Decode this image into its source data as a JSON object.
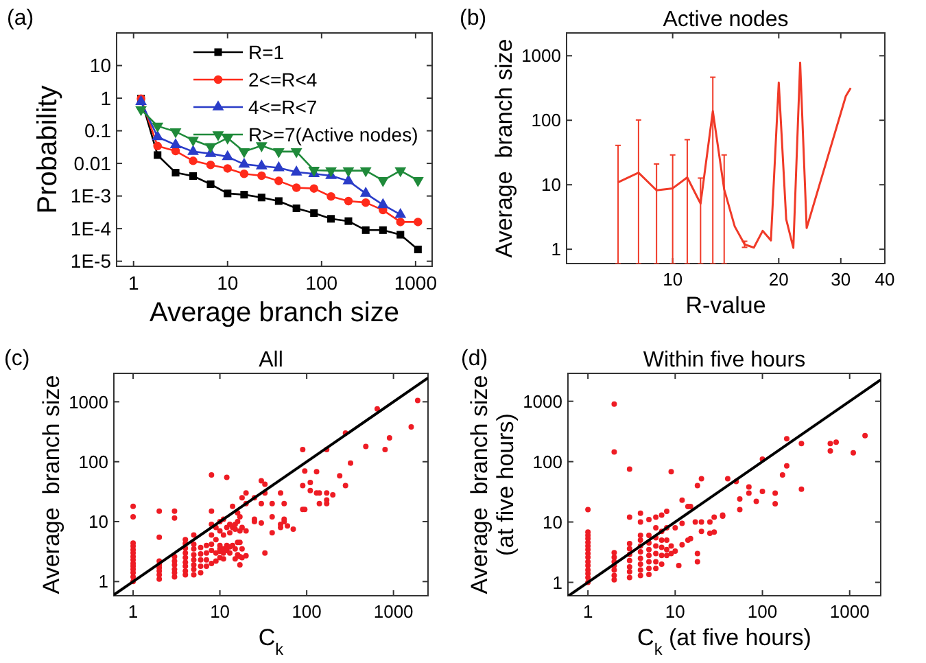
{
  "chart_data": [
    {
      "type": "line",
      "log": "xy",
      "xlabel": "Average branch size",
      "ylabel": "Probability",
      "annotations": [
        "(a)"
      ],
      "legend": "top right",
      "xlim": [
        0.66,
        1500
      ],
      "ylim": [
        7e-06,
        100
      ],
      "xticks": [
        1,
        10,
        100,
        1000
      ],
      "yticks": [
        {
          "value": 1e-05,
          "label": "1E-5"
        },
        {
          "value": 0.0001,
          "label": "1E-4"
        },
        {
          "value": 0.001,
          "label": "1E-3"
        },
        0.01,
        0.1,
        1,
        10
      ],
      "x": [
        1.2,
        1.8,
        2.8,
        4.3,
        6.6,
        10,
        15,
        23,
        35,
        54,
        83,
        126,
        193,
        295,
        450,
        690,
        1060
      ],
      "series": [
        {
          "name": "R=1",
          "color": "#000000",
          "marker": "square",
          "values": [
            0.97,
            0.018,
            0.0052,
            0.0041,
            0.0023,
            0.0012,
            0.0011,
            0.0009,
            0.0007,
            0.00042,
            0.0003,
            0.0002,
            0.00017,
            9e-05,
            9e-05,
            6.5e-05,
            2.3e-05
          ]
        },
        {
          "name": "2<=R<4",
          "color": "#ff2a1a",
          "marker": "circle",
          "values": [
            0.97,
            0.034,
            0.024,
            0.012,
            0.009,
            0.007,
            0.0048,
            0.0042,
            0.0029,
            0.0018,
            0.0017,
            0.00097,
            0.0007,
            0.00063,
            0.00037,
            0.00016,
            0.00016
          ]
        },
        {
          "name": "4<=R<7",
          "color": "#2a3cc8",
          "marker": "triangle",
          "values": [
            0.78,
            0.065,
            0.037,
            0.023,
            0.02,
            0.016,
            0.0094,
            0.0083,
            0.0073,
            0.0054,
            0.0048,
            0.0042,
            0.0029,
            0.0012,
            0.00054,
            0.00027,
            null
          ]
        },
        {
          "name": "R>=7(Active nodes)",
          "color": "#1f8a3a",
          "marker": "triangle-down",
          "values": [
            0.45,
            0.14,
            0.094,
            0.052,
            0.033,
            0.06,
            0.023,
            0.035,
            0.023,
            0.023,
            0.0062,
            0.006,
            0.006,
            0.006,
            0.003,
            0.006,
            0.003
          ]
        }
      ]
    },
    {
      "type": "line",
      "log": "xy",
      "title": "Active nodes",
      "xlabel": "R-value",
      "ylabel": "Average  branch size",
      "annotations": [
        "(b)"
      ],
      "xlim": [
        5,
        40
      ],
      "ylim": [
        0.6,
        2260
      ],
      "xticks": [
        10,
        20,
        30,
        40
      ],
      "yticks": [
        1,
        10,
        100,
        1000
      ],
      "x": [
        7,
        8,
        9,
        10,
        11,
        12,
        13,
        14,
        15,
        16,
        17,
        18,
        19,
        20,
        21,
        22,
        23,
        24,
        31,
        32
      ],
      "series": [
        {
          "color": "#f03a28",
          "values": [
            10.9,
            15.4,
            8.2,
            8.8,
            13,
            5.1,
            139,
            8.5,
            2.26,
            1.19,
            1.06,
            1.93,
            1.37,
            385,
            2.9,
            1.05,
            785,
            2.13,
            237,
            316
          ],
          "errors": [
            [
              0.6,
              40.8
            ],
            [
              0.6,
              101
            ],
            [
              0.6,
              21
            ],
            [
              0.6,
              29
            ],
            [
              0.6,
              50
            ],
            [
              0.6,
              12.7
            ],
            [
              0.6,
              465
            ],
            [
              0.6,
              29
            ],
            null,
            [
              1.07,
              1.33
            ],
            null,
            null,
            null,
            null,
            null,
            null,
            null,
            null,
            null,
            null
          ]
        }
      ]
    },
    {
      "type": "scatter",
      "log": "xy",
      "title": "All",
      "xlabel": "C$_{k}$",
      "ylabel": "Average  branch size",
      "annotations": [
        "(c)"
      ],
      "xlim": [
        0.6,
        2500
      ],
      "ylim": [
        0.58,
        2980
      ],
      "xticks": [
        1,
        10,
        100,
        1000
      ],
      "yticks": [
        1,
        10,
        100,
        1000
      ],
      "series": [
        {
          "color": "#ee1c24",
          "x": [
            1,
            1,
            1,
            1,
            1,
            1,
            1,
            1,
            1,
            1,
            1,
            1,
            1,
            1,
            2,
            2,
            2,
            2,
            2,
            2,
            2,
            2,
            3,
            3,
            3,
            3,
            3,
            3,
            3,
            3,
            4,
            4,
            4,
            4,
            4,
            4,
            4,
            4,
            4,
            5,
            5,
            5,
            5,
            5,
            5,
            5,
            5,
            6,
            6,
            6,
            6,
            6,
            7,
            7,
            7,
            7,
            8,
            8,
            8,
            8,
            8,
            8,
            8,
            9,
            9,
            9,
            9,
            10,
            10,
            10,
            10,
            10,
            10,
            11,
            11,
            11,
            11,
            11,
            12,
            12,
            12,
            12,
            13,
            13,
            13,
            13,
            14,
            14,
            14,
            15,
            15,
            15,
            15,
            16,
            16,
            16,
            16,
            17,
            17,
            17,
            17,
            17,
            18,
            18,
            18,
            18,
            20,
            20,
            20,
            20,
            25,
            25,
            25,
            30,
            30,
            30,
            33,
            33,
            33,
            40,
            40,
            40,
            50,
            50,
            50,
            55,
            55,
            55,
            60,
            70,
            90,
            90,
            90,
            95,
            95,
            110,
            110,
            130,
            130,
            140,
            140,
            170,
            170,
            170,
            170,
            200,
            240,
            280,
            280,
            320,
            480,
            650,
            800,
            900,
            1600,
            1900
          ],
          "values": [
            1.0,
            1.2,
            1.4,
            1.6,
            1.8,
            2.0,
            2.3,
            2.6,
            3.0,
            3.4,
            3.9,
            4.4,
            12,
            18,
            1.1,
            1.3,
            1.5,
            1.7,
            1.9,
            2.2,
            5.5,
            15,
            1.2,
            1.4,
            1.6,
            1.9,
            2.2,
            2.6,
            11.5,
            15,
            1.3,
            1.5,
            1.8,
            2.1,
            2.5,
            3,
            3.6,
            4.3,
            5,
            1.3,
            1.6,
            1.9,
            2.3,
            2.8,
            3.5,
            4.2,
            6,
            1.4,
            1.8,
            2.3,
            2.9,
            3.7,
            1.8,
            2.3,
            3,
            4,
            2,
            3.3,
            4.2,
            6,
            9,
            15,
            60,
            2.2,
            3,
            5,
            8,
            2.5,
            3.2,
            3.5,
            4,
            7,
            10,
            2.4,
            3,
            3.5,
            6,
            11,
            3.3,
            4,
            8,
            55,
            3,
            3.8,
            6.5,
            9,
            4,
            8,
            18,
            2.4,
            3.5,
            7.5,
            9,
            2.8,
            4.5,
            10,
            14,
            1.9,
            2.6,
            4.5,
            7,
            12,
            2.5,
            3.5,
            8,
            25,
            2.7,
            7,
            20,
            30,
            10,
            11,
            25,
            9.5,
            20,
            48,
            3,
            30,
            42,
            6.5,
            12,
            20,
            8,
            9,
            30,
            10,
            11,
            20,
            8.5,
            7.5,
            16,
            40,
            160,
            16,
            70,
            45,
            33,
            30,
            68,
            20,
            30,
            20,
            23,
            30,
            160,
            28,
            58,
            40,
            300,
            95,
            180,
            760,
            160,
            250,
            380,
            1050
          ]
        },
        {
          "type": "line",
          "color": "#000000",
          "x": [
            0.6,
            2500
          ],
          "values": [
            0.6,
            2500
          ]
        }
      ]
    },
    {
      "type": "scatter",
      "log": "xy",
      "title": "Within five hours",
      "xlabel": "C$_{k}$ (at five hours)",
      "ylabel": "Average  branch size\n(at five hours)",
      "annotations": [
        "(d)"
      ],
      "xlim": [
        0.59,
        2270
      ],
      "ylim": [
        0.6,
        2900
      ],
      "xticks": [
        1,
        10,
        100,
        1000
      ],
      "yticks": [
        1,
        10,
        100,
        1000
      ],
      "series": [
        {
          "color": "#ee1c24",
          "x": [
            1,
            1,
            1,
            1,
            1,
            1,
            1,
            1,
            1,
            1,
            1,
            1,
            1,
            1,
            1,
            2,
            2,
            2,
            2,
            2,
            2,
            2,
            2,
            2,
            3,
            3,
            3,
            3,
            3,
            3,
            3,
            3,
            3,
            4,
            4,
            4,
            4,
            4,
            4,
            4,
            4,
            4,
            4,
            5,
            5,
            5,
            5,
            5,
            5,
            5,
            5,
            6,
            6,
            6,
            6,
            6,
            6,
            6,
            7,
            7,
            7,
            7,
            7,
            7,
            8,
            8,
            8,
            8,
            8,
            9,
            9,
            9,
            10,
            10,
            11,
            12,
            12,
            12,
            14,
            14,
            15,
            15,
            17,
            18,
            18,
            18,
            20,
            20,
            20,
            25,
            25,
            28,
            28,
            35,
            35,
            40,
            50,
            55,
            55,
            70,
            70,
            85,
            100,
            100,
            140,
            140,
            170,
            190,
            190,
            280,
            280,
            600,
            600,
            700,
            1100,
            1500
          ],
          "values": [
            1.0,
            1.2,
            1.4,
            1.6,
            1.9,
            2.2,
            2.6,
            3,
            3.5,
            4,
            4.6,
            5.3,
            6,
            6.8,
            16,
            1.1,
            1.3,
            1.6,
            1.9,
            2.2,
            2.6,
            3.1,
            900,
            145,
            1.2,
            1.5,
            1.8,
            2.3,
            2.9,
            3.6,
            4.4,
            12,
            75,
            1.3,
            1.6,
            2,
            2.5,
            3.2,
            4,
            5,
            6,
            10,
            14,
            1.35,
            1.7,
            2.2,
            2.8,
            3.5,
            4.5,
            6,
            11,
            1.7,
            2.2,
            3,
            4,
            5.5,
            8,
            12,
            2,
            2.8,
            3.8,
            5,
            7,
            13,
            2.8,
            3.5,
            5,
            8,
            15,
            3,
            4,
            68,
            3.3,
            8,
            1.9,
            4.2,
            9.5,
            23,
            5,
            18,
            5.3,
            18,
            10,
            2.2,
            3,
            40,
            7,
            10,
            52,
            10,
            6.5,
            6.8,
            12,
            12.5,
            13,
            52,
            47,
            16,
            24,
            38,
            30,
            22,
            32,
            110,
            20,
            30,
            60,
            85,
            240,
            35,
            200,
            150,
            200,
            210,
            140,
            270
          ]
        },
        {
          "type": "line",
          "color": "#000000",
          "x": [
            0.6,
            2270
          ],
          "values": [
            0.6,
            2270
          ]
        }
      ]
    }
  ]
}
